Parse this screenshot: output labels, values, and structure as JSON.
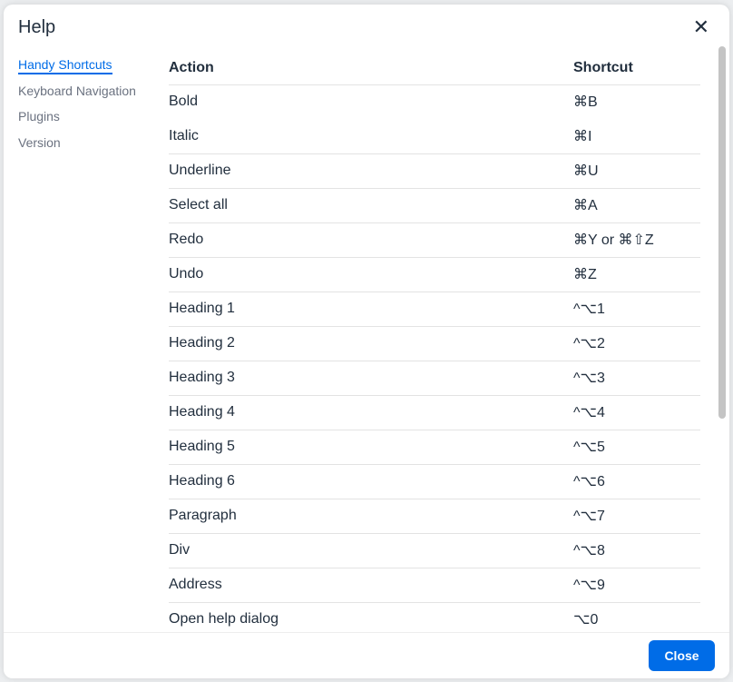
{
  "dialog": {
    "title": "Help",
    "close_button": "Close"
  },
  "nav": [
    "Handy Shortcuts",
    "Keyboard Navigation",
    "Plugins",
    "Version"
  ],
  "table": {
    "headers": [
      "Action",
      "Shortcut"
    ],
    "rows": [
      [
        "Bold",
        "⌘B"
      ],
      [
        "Italic",
        "⌘I"
      ],
      [
        "Underline",
        "⌘U"
      ],
      [
        "Select all",
        "⌘A"
      ],
      [
        "Redo",
        "⌘Y or ⌘⇧Z"
      ],
      [
        "Undo",
        "⌘Z"
      ],
      [
        "Heading 1",
        "^⌥1"
      ],
      [
        "Heading 2",
        "^⌥2"
      ],
      [
        "Heading 3",
        "^⌥3"
      ],
      [
        "Heading 4",
        "^⌥4"
      ],
      [
        "Heading 5",
        "^⌥5"
      ],
      [
        "Heading 6",
        "^⌥6"
      ],
      [
        "Paragraph",
        "^⌥7"
      ],
      [
        "Div",
        "^⌥8"
      ],
      [
        "Address",
        "^⌥9"
      ],
      [
        "Open help dialog",
        "⌥0"
      ]
    ]
  }
}
